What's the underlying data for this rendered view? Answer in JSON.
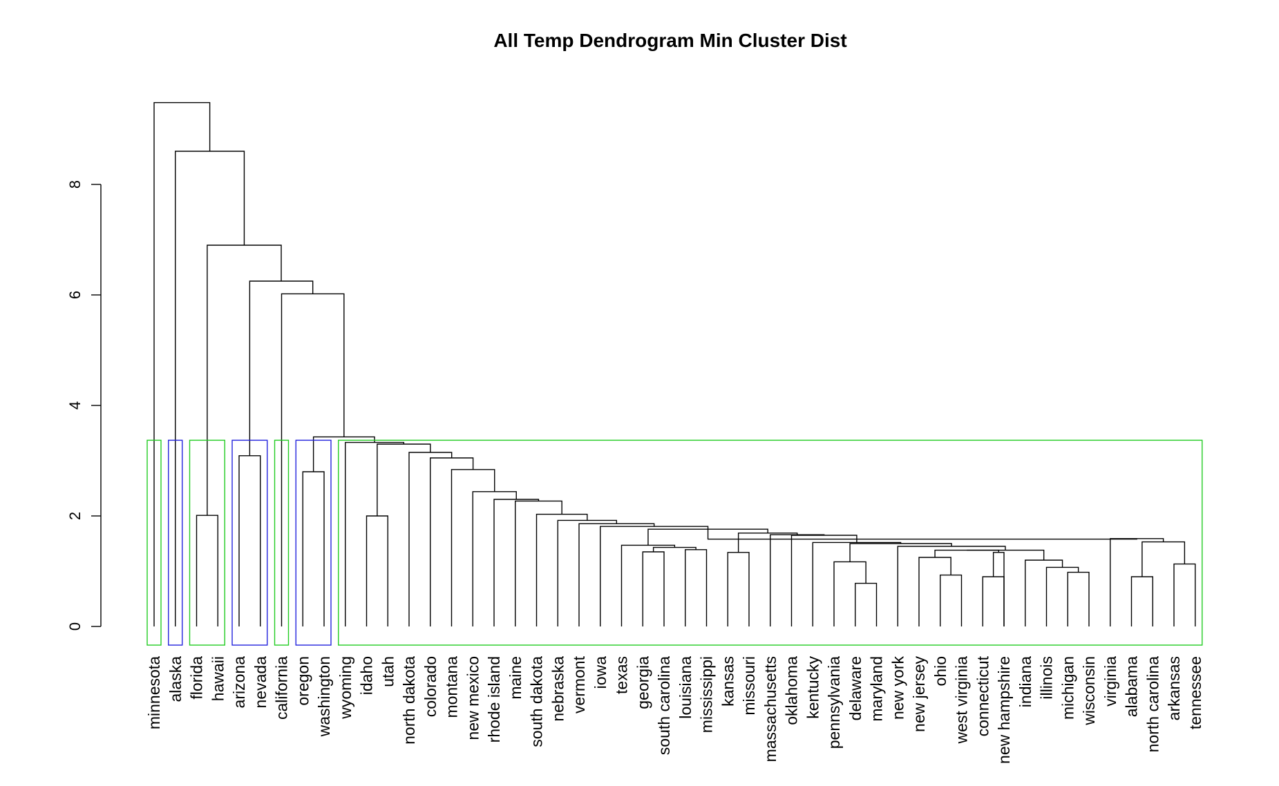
{
  "chart_data": {
    "type": "dendrogram",
    "title": "All Temp Dendrogram Min Cluster Dist",
    "xlabel": "",
    "ylabel": "",
    "ylim": [
      0,
      9.5
    ],
    "yticks": [
      0,
      2,
      4,
      6,
      8
    ],
    "leaves": [
      "minnesota",
      "alaska",
      "florida",
      "hawaii",
      "arizona",
      "nevada",
      "california",
      "oregon",
      "washington",
      "wyoming",
      "idaho",
      "utah",
      "north dakota",
      "colorado",
      "montana",
      "new mexico",
      "rhode island",
      "maine",
      "south dakota",
      "nebraska",
      "vermont",
      "iowa",
      "texas",
      "georgia",
      "south carolina",
      "louisiana",
      "mississippi",
      "kansas",
      "missouri",
      "massachusetts",
      "oklahoma",
      "kentucky",
      "pennsylvania",
      "delaware",
      "maryland",
      "new york",
      "new jersey",
      "ohio",
      "west virginia",
      "connecticut",
      "new hampshire",
      "indiana",
      "illinois",
      "michigan",
      "wisconsin",
      "virginia",
      "alabama",
      "north carolina",
      "arkansas",
      "tennessee"
    ],
    "merges": [
      {
        "a": "L:33",
        "b": "L:34",
        "h": 0.78
      },
      {
        "a": "L:46",
        "b": "L:47",
        "h": 0.9
      },
      {
        "a": "L:39",
        "b": "L:40",
        "h": 0.9
      },
      {
        "a": "L:37",
        "b": "L:38",
        "h": 0.93
      },
      {
        "a": "L:43",
        "b": "L:44",
        "h": 0.98
      },
      {
        "a": "L:48",
        "b": "L:49",
        "h": 1.13
      },
      {
        "a": "L:32",
        "b": "M:0",
        "h": 1.17
      },
      {
        "a": "L:42",
        "b": "M:4",
        "h": 1.07
      },
      {
        "a": "L:41",
        "b": "M:7",
        "h": 1.2
      },
      {
        "a": "L:36",
        "b": "M:3",
        "h": 1.25
      },
      {
        "a": "L:27",
        "b": "L:28",
        "h": 1.34
      },
      {
        "a": "L:40",
        "b": "M:2",
        "h": 1.34
      },
      {
        "a": "L:23",
        "b": "L:24",
        "h": 1.35
      },
      {
        "a": "L:25",
        "b": "L:26",
        "h": 1.39
      },
      {
        "a": "M:12",
        "b": "M:13",
        "h": 1.43
      },
      {
        "a": "L:22",
        "b": "M:14",
        "h": 1.47
      },
      {
        "a": "M:9",
        "b": "M:11",
        "h": 1.38
      },
      {
        "a": "M:16",
        "b": "M:8",
        "h": 1.38
      },
      {
        "a": "L:35",
        "b": "M:17",
        "h": 1.45
      },
      {
        "a": "M:6",
        "b": "M:18",
        "h": 1.5
      },
      {
        "a": "M:1",
        "b": "M:5",
        "h": 1.53
      },
      {
        "a": "L:31",
        "b": "M:19",
        "h": 1.52
      },
      {
        "a": "L:30",
        "b": "M:21",
        "h": 1.65
      },
      {
        "a": "L:29",
        "b": "M:22",
        "h": 1.66
      },
      {
        "a": "L:45",
        "b": "M:20",
        "h": 1.59
      },
      {
        "a": "M:10",
        "b": "M:23",
        "h": 1.69
      },
      {
        "a": "M:15",
        "b": "M:25",
        "h": 1.76
      },
      {
        "a": "M:26",
        "b": "M:24",
        "h": 1.58
      },
      {
        "a": "L:21",
        "b": "M:26",
        "h": 1.81
      },
      {
        "a": "L:20",
        "b": "M:28",
        "h": 1.86
      },
      {
        "a": "L:19",
        "b": "M:29",
        "h": 1.92
      },
      {
        "a": "L:18",
        "b": "M:30",
        "h": 2.03
      },
      {
        "a": "L:17",
        "b": "M:31",
        "h": 2.27
      },
      {
        "a": "L:16",
        "b": "M:32",
        "h": 2.3
      },
      {
        "a": "L:15",
        "b": "M:33",
        "h": 2.44
      },
      {
        "a": "L:14",
        "b": "M:34",
        "h": 2.84
      },
      {
        "a": "L:13",
        "b": "M:35",
        "h": 3.05
      },
      {
        "a": "L:12",
        "b": "M:36",
        "h": 3.15
      },
      {
        "a": "L:10",
        "b": "L:11",
        "h": 2.0
      },
      {
        "a": "M:38",
        "b": "M:37",
        "h": 3.3
      },
      {
        "a": "L:9",
        "b": "M:39",
        "h": 3.33
      },
      {
        "a": "L:7",
        "b": "L:8",
        "h": 2.8
      },
      {
        "a": "M:41",
        "b": "M:40",
        "h": 3.43
      },
      {
        "a": "L:6",
        "b": "M:42",
        "h": 6.02
      },
      {
        "a": "L:4",
        "b": "L:5",
        "h": 3.09
      },
      {
        "a": "M:44",
        "b": "M:43",
        "h": 6.25
      },
      {
        "a": "L:2",
        "b": "L:3",
        "h": 2.01
      },
      {
        "a": "M:46",
        "b": "M:45",
        "h": 6.9
      },
      {
        "a": "L:1",
        "b": "M:47",
        "h": 8.6
      },
      {
        "a": "L:0",
        "b": "M:48",
        "h": 9.48
      }
    ],
    "cluster_boxes": [
      {
        "from": 0,
        "to": 0,
        "color": "#22cc22"
      },
      {
        "from": 1,
        "to": 1,
        "color": "#2222dd"
      },
      {
        "from": 2,
        "to": 3,
        "color": "#22cc22"
      },
      {
        "from": 4,
        "to": 5,
        "color": "#2222dd"
      },
      {
        "from": 6,
        "to": 6,
        "color": "#22cc22"
      },
      {
        "from": 7,
        "to": 8,
        "color": "#2222dd"
      },
      {
        "from": 9,
        "to": 49,
        "color": "#22cc22"
      }
    ],
    "box_top": 3.37
  }
}
